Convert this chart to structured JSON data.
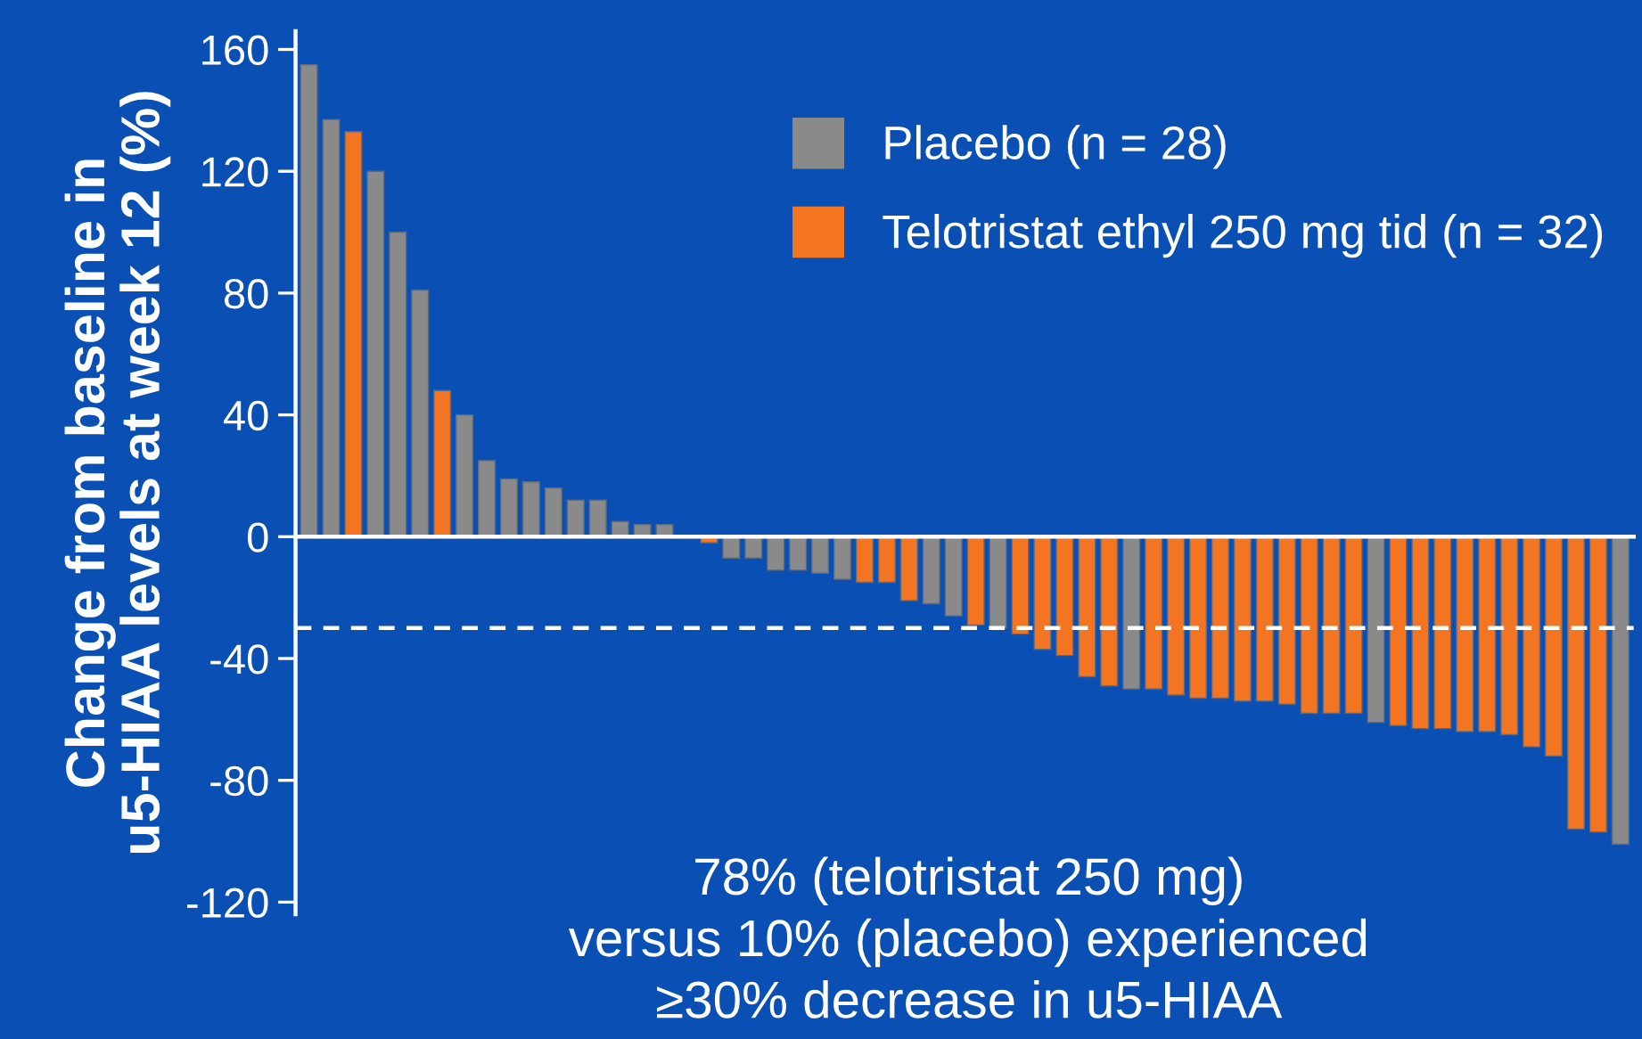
{
  "chart_data": {
    "type": "bar",
    "ylabel": "Change from baseline in\nu5-HIAA levels at week 12 (%)",
    "categories": [
      null,
      null,
      null,
      null,
      null,
      null,
      null,
      null,
      null,
      null,
      null,
      null,
      null,
      null,
      null,
      null,
      null,
      null,
      null,
      null,
      null,
      null,
      null,
      null,
      null,
      null,
      null,
      null,
      null,
      null,
      null,
      null,
      null,
      null,
      null,
      null,
      null,
      null,
      null,
      null,
      null,
      null,
      null,
      null,
      null,
      null,
      null,
      null,
      null,
      null,
      null,
      null,
      null,
      null,
      null,
      null,
      null,
      null,
      null,
      null
    ],
    "series": [
      {
        "name": "Placebo (n = 28)",
        "color": "#8a8a8a",
        "values": [
          155,
          137,
          null,
          120,
          100,
          81,
          null,
          40,
          25,
          19,
          18,
          16,
          12,
          12,
          5,
          4,
          4,
          null,
          null,
          -7,
          -7,
          -11,
          -11,
          -12,
          -14,
          null,
          null,
          null,
          -22,
          -26,
          null,
          -30,
          null,
          null,
          null,
          null,
          null,
          -50,
          null,
          null,
          null,
          null,
          null,
          null,
          null,
          null,
          null,
          null,
          -61,
          null,
          null,
          null,
          null,
          null,
          null,
          null,
          null,
          null,
          null,
          -101
        ]
      },
      {
        "name": "Telotristat ethyl 250 mg tid (n = 32)",
        "color": "#f47521",
        "values": [
          null,
          null,
          133,
          null,
          null,
          null,
          48,
          null,
          null,
          null,
          null,
          null,
          null,
          null,
          null,
          null,
          null,
          null,
          -2,
          null,
          null,
          null,
          null,
          null,
          null,
          -15,
          -15,
          -21,
          null,
          null,
          -29,
          null,
          -32,
          -37,
          -39,
          -46,
          -49,
          null,
          -50,
          -52,
          -53,
          -53,
          -54,
          -54,
          -55,
          -58,
          -58,
          -58,
          null,
          -62,
          -63,
          -63,
          -64,
          -64,
          -65,
          -69,
          -72,
          -96,
          -97,
          null
        ]
      }
    ],
    "ylim": [
      -124,
      166
    ],
    "yticks": [
      -120,
      -80,
      -40,
      0,
      40,
      80,
      120,
      160
    ],
    "tick_labels": "y",
    "legend": "top right",
    "ref_lines": [
      {
        "axis": "y",
        "value": -30,
        "color": "#ffffff",
        "line_style": "dashed"
      }
    ],
    "annotations": [
      "78% (telotristat 250 mg)\nversus 10% (placebo) experienced\n≥30% decrease in u5-HIAA"
    ]
  }
}
